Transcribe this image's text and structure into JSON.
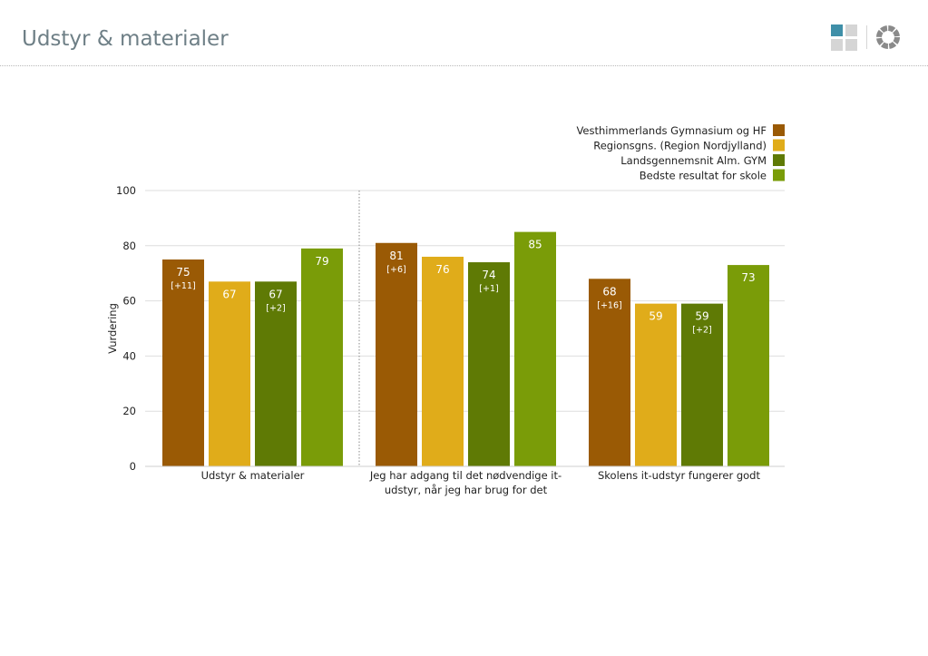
{
  "header": {
    "title": "Udstyr & materialer",
    "grid_icon": "dashboard-grid-icon",
    "ring_icon": "ring-chart-icon"
  },
  "colors": {
    "title": "#6e7f86",
    "accent_square": "#3f8fa8",
    "grey_square": "#d5d5d5"
  },
  "chart_data": {
    "type": "bar",
    "categories": [
      [
        "Udstyr & materialer"
      ],
      [
        "Jeg har adgang til det nødvendige it-",
        "udstyr, når jeg har brug for det"
      ],
      [
        "Skolens it-udstyr fungerer godt"
      ]
    ],
    "series": [
      {
        "name": "Vesthimmerlands Gymnasium og HF",
        "color": "#9a5a05",
        "values": [
          75,
          81,
          68
        ],
        "diffs": [
          "[+11]",
          "[+6]",
          "[+16]"
        ]
      },
      {
        "name": "Regionsgns. (Region Nordjylland)",
        "color": "#e0ac1a",
        "values": [
          67,
          76,
          59
        ],
        "diffs": [
          "",
          "",
          ""
        ]
      },
      {
        "name": "Landsgennemsnit Alm. GYM",
        "color": "#5f7a05",
        "values": [
          67,
          74,
          59
        ],
        "diffs": [
          "[+2]",
          "[+1]",
          "[+2]"
        ]
      },
      {
        "name": "Bedste resultat for skole",
        "color": "#7a9c08",
        "values": [
          79,
          85,
          73
        ],
        "diffs": [
          "",
          "",
          ""
        ]
      }
    ],
    "ylabel": "Vurdering",
    "ylim": [
      0,
      100
    ],
    "yticks": [
      0,
      20,
      40,
      60,
      80,
      100
    ],
    "grid": true,
    "legend_position": "top-right",
    "separator_after_category": 0
  }
}
